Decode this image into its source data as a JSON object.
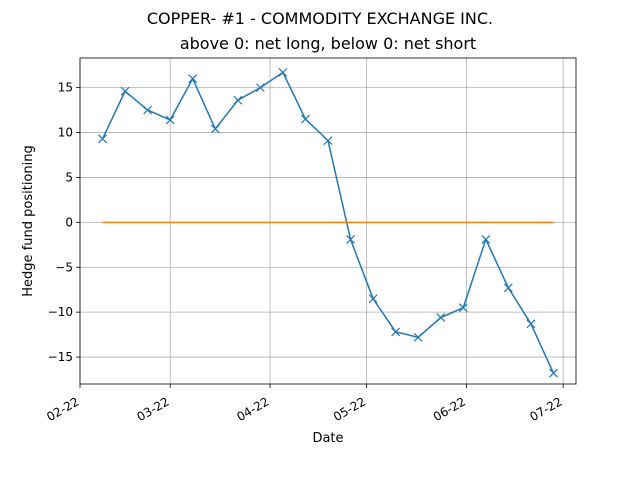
{
  "title": "COPPER- #1 - COMMODITY EXCHANGE INC.",
  "subtitle": "above 0: net long, below 0: net short",
  "chart_data": {
    "type": "line",
    "title": "COPPER- #1 - COMMODITY EXCHANGE INC.",
    "subtitle": "above 0: net long, below 0: net short",
    "xlabel": "Date",
    "ylabel": "Hedge fund positioning",
    "x_ticks": [
      {
        "date": "2022-02-01",
        "label": "02-22"
      },
      {
        "date": "2022-03-01",
        "label": "03-22"
      },
      {
        "date": "2022-04-01",
        "label": "04-22"
      },
      {
        "date": "2022-05-01",
        "label": "05-22"
      },
      {
        "date": "2022-06-01",
        "label": "06-22"
      },
      {
        "date": "2022-07-01",
        "label": "07-22"
      }
    ],
    "xlim": [
      "2022-02-01",
      "2022-07-05"
    ],
    "ylim": [
      -18,
      18.3
    ],
    "y_ticks": [
      -15,
      -10,
      -5,
      0,
      5,
      10,
      15
    ],
    "grid": true,
    "series": [
      {
        "color": "#1f77b4",
        "marker": "x",
        "x": [
          "2022-02-08",
          "2022-02-15",
          "2022-02-22",
          "2022-03-01",
          "2022-03-08",
          "2022-03-15",
          "2022-03-22",
          "2022-03-29",
          "2022-04-05",
          "2022-04-12",
          "2022-04-19",
          "2022-04-26",
          "2022-05-03",
          "2022-05-10",
          "2022-05-17",
          "2022-05-24",
          "2022-05-31",
          "2022-06-07",
          "2022-06-14",
          "2022-06-21",
          "2022-06-28"
        ],
        "y": [
          9.3,
          14.6,
          12.5,
          11.4,
          16.0,
          10.4,
          13.6,
          15.0,
          16.7,
          11.5,
          9.1,
          -1.9,
          -8.5,
          -12.2,
          -12.8,
          -10.6,
          -9.5,
          -1.9,
          -7.3,
          -11.3,
          -16.8
        ]
      },
      {
        "color": "#ff7f0e",
        "marker": "none",
        "x": [
          "2022-02-08",
          "2022-06-28"
        ],
        "y": [
          0,
          0
        ]
      }
    ]
  }
}
